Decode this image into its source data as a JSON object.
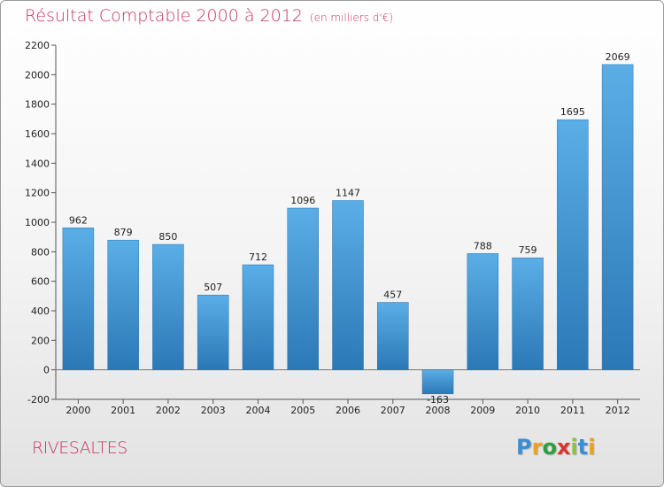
{
  "title": "Résultat Comptable 2000 à 2012",
  "title_unit": "(en milliers d'€)",
  "commune": "RIVESALTES",
  "logo": {
    "text": "Proxiti",
    "letters": [
      "P",
      "r",
      "o",
      "x",
      "i",
      "t",
      "i"
    ],
    "colors": [
      "#3a8fd1",
      "#f0a020",
      "#2e9e3e",
      "#d9342b",
      "#8fc03c",
      "#3a8fd1",
      "#f0a020"
    ]
  },
  "colors": {
    "title": "#c9335f",
    "bar_top": "#5aaee6",
    "bar_bottom": "#2b78b6"
  },
  "chart_data": {
    "type": "bar",
    "categories": [
      "2000",
      "2001",
      "2002",
      "2003",
      "2004",
      "2005",
      "2006",
      "2007",
      "2008",
      "2009",
      "2010",
      "2011",
      "2012"
    ],
    "values": [
      962,
      879,
      850,
      507,
      712,
      1096,
      1147,
      457,
      -163,
      788,
      759,
      1695,
      2069
    ],
    "value_labels": [
      "962",
      "879",
      "850",
      "507",
      "712",
      "1096",
      "1147",
      "457",
      "-163",
      "788",
      "759",
      "1695",
      "2069"
    ],
    "ylim": [
      -200,
      2200
    ],
    "yticks": [
      -200,
      0,
      200,
      400,
      600,
      800,
      1000,
      1200,
      1400,
      1600,
      1800,
      2000,
      2200
    ],
    "grid": false
  }
}
